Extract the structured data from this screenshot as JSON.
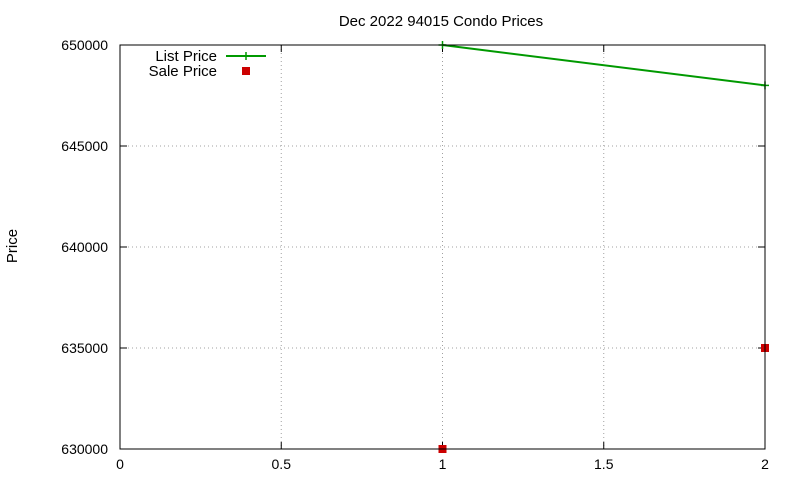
{
  "chart_data": {
    "type": "line",
    "title": "Dec 2022 94015 Condo Prices",
    "xlabel": "",
    "ylabel": "Price",
    "xlim": [
      0,
      2
    ],
    "ylim": [
      630000,
      650000
    ],
    "xticks": [
      0,
      0.5,
      1,
      1.5,
      2
    ],
    "xtick_labels": [
      "0",
      "0.5",
      "1",
      "1.5",
      "2"
    ],
    "yticks": [
      630000,
      635000,
      640000,
      645000,
      650000
    ],
    "ytick_labels": [
      "630000",
      "635000",
      "640000",
      "645000",
      "650000"
    ],
    "grid": true,
    "legend_position": "top-left",
    "series": [
      {
        "name": "List Price",
        "style": "linespoints",
        "marker": "plus",
        "color": "#009900",
        "x": [
          1,
          2
        ],
        "y": [
          650000,
          648000
        ]
      },
      {
        "name": "Sale Price",
        "style": "points",
        "marker": "square",
        "color": "#cc0000",
        "x": [
          1,
          2
        ],
        "y": [
          630000,
          635000
        ]
      }
    ]
  }
}
